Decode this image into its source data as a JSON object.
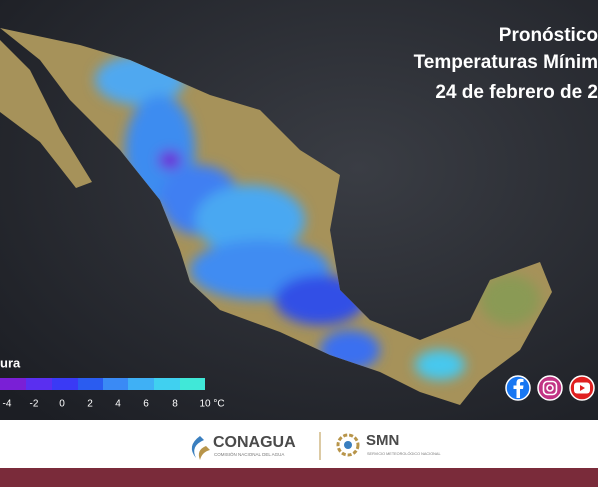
{
  "header": {
    "title_lines": [
      "Pronóstico",
      "Temperaturas Mínim",
      "24 de febrero de 2"
    ]
  },
  "legend": {
    "title": "ura",
    "labels": [
      "-4",
      "-2",
      "0",
      "2",
      "4",
      "6",
      "8",
      "10 °C"
    ]
  },
  "footer": {
    "conagua": "CONAGUA",
    "conagua_sub": "COMISIÓN NACIONAL DEL AGUA",
    "smn": "SMN",
    "smn_sub": "SERVICIO METEOROLÓGICO NACIONAL"
  }
}
